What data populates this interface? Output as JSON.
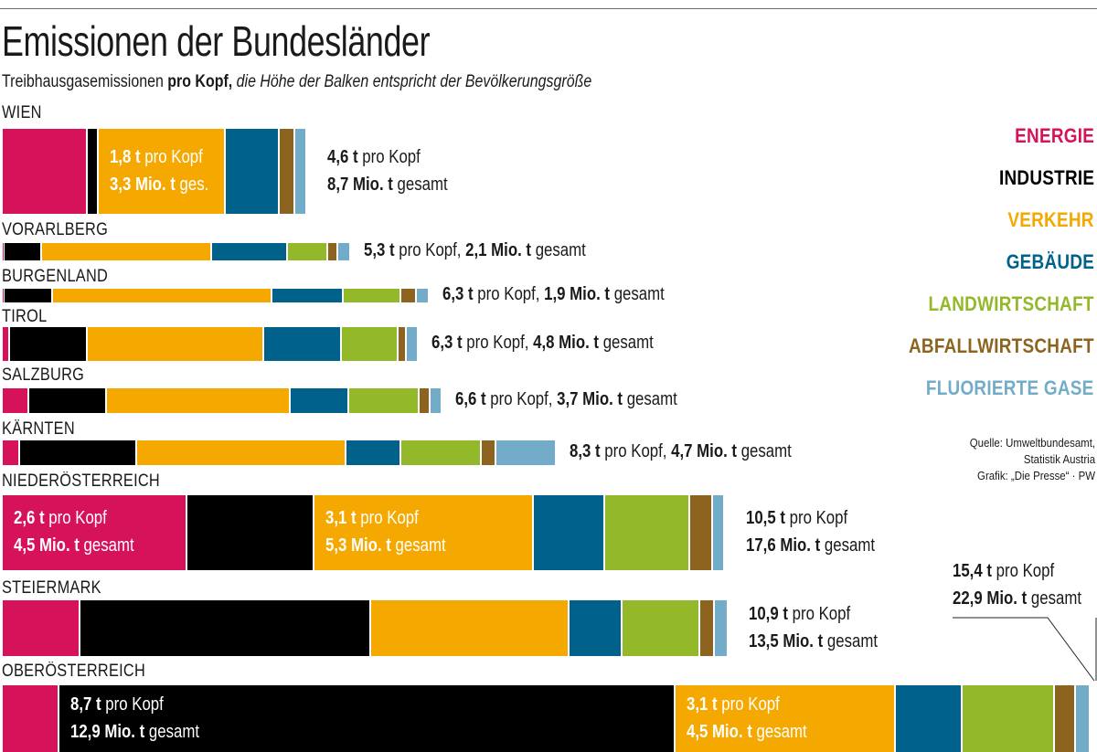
{
  "title": "Emissionen der Bundesländer",
  "subtitle": {
    "part1": "Treibhausgasemissionen ",
    "bold": "pro Kopf,",
    "italic": " die Höhe der Balken entspricht der Bevölkerungsgröße"
  },
  "legend": [
    {
      "name": "ENERGIE",
      "color": "#d6135a"
    },
    {
      "name": "INDUSTRIE",
      "color": "#000000"
    },
    {
      "name": "VERKEHR",
      "color": "#f5a800"
    },
    {
      "name": "GEBÄUDE",
      "color": "#00628a"
    },
    {
      "name": "LANDWIRTSCHAFT",
      "color": "#93b82a"
    },
    {
      "name": "ABFALLWIRTSCHAFT",
      "color": "#8c6420"
    },
    {
      "name": "FLUORIERTE GASE",
      "color": "#73acc8"
    }
  ],
  "source": {
    "line1": "Quelle: Umweltbundesamt,",
    "line2": "Statistik Austria",
    "line3": "Grafik: „Die Presse“ · PW"
  },
  "chart_data": {
    "type": "bar",
    "title": "Emissionen der Bundesländer",
    "categories": [
      "WIEN",
      "VORARLBERG",
      "BURGENLAND",
      "TIROL",
      "SALZBURG",
      "KÄRNTEN",
      "NIEDERÖSTERREICH",
      "STEIERMARK",
      "OBERÖSTERREICH"
    ],
    "series_names": [
      "ENERGIE",
      "INDUSTRIE",
      "VERKEHR",
      "GEBÄUDE",
      "LANDWIRTSCHAFT",
      "ABFALLWIRTSCHAFT",
      "FLUORIERTE GASE"
    ],
    "rows": [
      {
        "name": "WIEN",
        "per_capita_t": 4.6,
        "total_mio_t": 8.7,
        "population_rel": 1.89,
        "values": [
          1.2,
          0.15,
          1.8,
          0.76,
          0,
          0.22,
          0.17
        ],
        "total_text": {
          "pc_num": "4,6 t",
          "pc_unit": " pro Kopf",
          "tot_num": "8,7 Mio. t",
          "tot_unit": " gesamt"
        },
        "inner": [
          {
            "seg": 2,
            "pc_num": "1,8 t",
            "pc_unit": " pro Kopf",
            "tot_num": "3,3 Mio. t",
            "tot_unit": " ges."
          }
        ]
      },
      {
        "name": "VORARLBERG",
        "per_capita_t": 5.3,
        "total_mio_t": 2.1,
        "population_rel": 0.39,
        "values": [
          0.03,
          0.53,
          2.4,
          1.07,
          0.56,
          0.14,
          0.18
        ],
        "total_text": {
          "pc_num": "5,3 t",
          "pc_unit": " pro Kopf, ",
          "tot_num": "2,1 Mio. t",
          "tot_unit": " gesamt"
        }
      },
      {
        "name": "BURGENLAND",
        "per_capita_t": 6.3,
        "total_mio_t": 1.9,
        "population_rel": 0.3,
        "values": [
          0.03,
          0.68,
          3.1,
          1.0,
          0.82,
          0.22,
          0.18
        ],
        "total_text": {
          "pc_num": "6,3 t",
          "pc_unit": " pro Kopf, ",
          "tot_num": "1,9 Mio. t",
          "tot_unit": " gesamt"
        }
      },
      {
        "name": "TIROL",
        "per_capita_t": 6.3,
        "total_mio_t": 4.8,
        "population_rel": 0.76,
        "values": [
          0.1,
          1.1,
          2.49,
          1.1,
          0.8,
          0.11,
          0.17
        ],
        "total_text": {
          "pc_num": "6,3 t",
          "pc_unit": " pro Kopf, ",
          "tot_num": "4,8 Mio. t",
          "tot_unit": " gesamt"
        }
      },
      {
        "name": "SALZBURG",
        "per_capita_t": 6.6,
        "total_mio_t": 3.7,
        "population_rel": 0.56,
        "values": [
          0.37,
          1.1,
          2.6,
          0.82,
          0.99,
          0.16,
          0.17
        ],
        "total_text": {
          "pc_num": "6,6 t",
          "pc_unit": " pro Kopf, ",
          "tot_num": "3,7 Mio. t",
          "tot_unit": " gesamt"
        }
      },
      {
        "name": "KÄRNTEN",
        "per_capita_t": 8.3,
        "total_mio_t": 4.7,
        "population_rel": 0.56,
        "values": [
          0.25,
          1.65,
          2.95,
          0.77,
          1.14,
          0.21,
          0.85
        ],
        "total_text": {
          "pc_num": "8,3 t",
          "pc_unit": " pro Kopf, ",
          "tot_num": "4,7 Mio. t",
          "tot_unit": " gesamt"
        }
      },
      {
        "name": "NIEDERÖSTERREICH",
        "per_capita_t": 10.5,
        "total_mio_t": 17.6,
        "population_rel": 1.68,
        "values": [
          2.6,
          1.8,
          3.1,
          1.0,
          1.2,
          0.33,
          0.17
        ],
        "total_text": {
          "pc_num": "10,5 t",
          "pc_unit": " pro Kopf",
          "tot_num": "17,6 Mio. t",
          "tot_unit": " gesamt"
        },
        "inner": [
          {
            "seg": 0,
            "pc_num": "2,6 t",
            "pc_unit": " pro Kopf",
            "tot_num": "4,5 Mio. t",
            "tot_unit": " gesamt"
          },
          {
            "seg": 2,
            "pc_num": "3,1 t",
            "pc_unit": " pro Kopf",
            "tot_num": "5,3 Mio. t",
            "tot_unit": " gesamt"
          }
        ]
      },
      {
        "name": "STEIERMARK",
        "per_capita_t": 10.9,
        "total_mio_t": 13.5,
        "population_rel": 1.24,
        "values": [
          1.1,
          4.1,
          2.8,
          0.75,
          1.1,
          0.2,
          0.2
        ],
        "total_text": {
          "pc_num": "10,9 t",
          "pc_unit": " pro Kopf",
          "tot_num": "13,5 Mio. t",
          "tot_unit": " gesamt"
        }
      },
      {
        "name": "OBERÖSTERREICH",
        "per_capita_t": 15.4,
        "total_mio_t": 22.9,
        "population_rel": 1.49,
        "values": [
          0.8,
          8.7,
          3.1,
          0.95,
          1.3,
          0.3,
          0.2
        ],
        "total_text": {
          "pc_num": "15,4 t",
          "pc_unit": " pro Kopf",
          "tot_num": "22,9 Mio. t",
          "tot_unit": " gesamt"
        },
        "inner": [
          {
            "seg": 1,
            "pc_num": "8,7 t",
            "pc_unit": " pro Kopf",
            "tot_num": "12,9 Mio. t",
            "tot_unit": " gesamt"
          },
          {
            "seg": 2,
            "pc_num": "3,1 t",
            "pc_unit": " pro Kopf",
            "tot_num": "4,5 Mio. t",
            "tot_unit": " gesamt"
          }
        ]
      }
    ]
  }
}
